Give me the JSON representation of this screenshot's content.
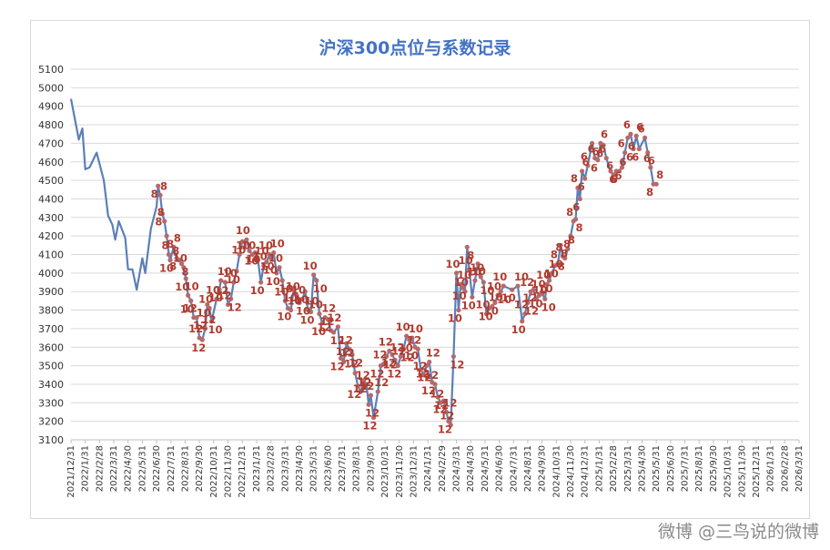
{
  "chart_data": {
    "type": "line",
    "title": "沪深300点位与系数记录",
    "ylim": [
      3100,
      5100
    ],
    "yticks": [
      3100,
      3200,
      3300,
      3400,
      3500,
      3600,
      3700,
      3800,
      3900,
      4000,
      4100,
      4200,
      4300,
      4400,
      4500,
      4600,
      4700,
      4800,
      4900,
      5000,
      5100
    ],
    "grid": true,
    "line_color": "#5b7fb8",
    "marker_color": "#b56a6a",
    "label_color": "#b03a2e",
    "x_labels": [
      "2021/12/31",
      "2022/1/31",
      "2022/2/28",
      "2022/3/31",
      "2022/4/30",
      "2022/5/31",
      "2022/6/30",
      "2022/7/31",
      "2022/8/31",
      "2022/9/30",
      "2022/10/31",
      "2022/11/30",
      "2022/12/31",
      "2023/1/31",
      "2023/2/28",
      "2023/3/31",
      "2023/4/30",
      "2023/5/31",
      "2023/6/30",
      "2023/7/31",
      "2023/8/31",
      "2023/9/30",
      "2023/10/31",
      "2023/11/30",
      "2023/12/31",
      "2024/1/31",
      "2024/2/29",
      "2024/3/31",
      "2024/4/30",
      "2024/5/31",
      "2024/6/30",
      "2024/7/31",
      "2024/8/31",
      "2024/9/30",
      "2024/10/31",
      "2024/11/30",
      "2024/12/31",
      "2025/1/31",
      "2025/2/28",
      "2025/3/31",
      "2025/4/30",
      "2025/5/31",
      "2025/6/30",
      "2025/7/31",
      "2025/8/31",
      "2025/9/30",
      "2025/10/31",
      "2025/11/30",
      "2025/12/31",
      "2026/1/31",
      "2026/2/28",
      "2026/3/31"
    ],
    "series": [
      {
        "name": "沪深300",
        "points": [
          [
            0,
            4940,
            ""
          ],
          [
            0.35,
            4800,
            ""
          ],
          [
            0.55,
            4720,
            ""
          ],
          [
            0.8,
            4780,
            ""
          ],
          [
            1.0,
            4560,
            ""
          ],
          [
            1.3,
            4570,
            ""
          ],
          [
            1.8,
            4650,
            ""
          ],
          [
            2.3,
            4500,
            ""
          ],
          [
            2.6,
            4310,
            ""
          ],
          [
            2.9,
            4260,
            ""
          ],
          [
            3.1,
            4180,
            ""
          ],
          [
            3.35,
            4280,
            ""
          ],
          [
            3.8,
            4190,
            ""
          ],
          [
            4.0,
            4020,
            ""
          ],
          [
            4.3,
            4020,
            ""
          ],
          [
            4.6,
            3910,
            ""
          ],
          [
            5.0,
            4080,
            ""
          ],
          [
            5.2,
            4000,
            ""
          ],
          [
            5.6,
            4240,
            ""
          ],
          [
            6.0,
            4360,
            ""
          ],
          [
            6.1,
            4470,
            "8"
          ],
          [
            6.25,
            4420,
            "8"
          ],
          [
            6.4,
            4320,
            "8"
          ],
          [
            6.55,
            4280,
            "8"
          ],
          [
            6.7,
            4200,
            "8"
          ],
          [
            6.85,
            4100,
            "8"
          ],
          [
            6.95,
            4070,
            "10"
          ],
          [
            7.2,
            4140,
            "8"
          ],
          [
            7.4,
            4080,
            "8"
          ],
          [
            7.6,
            4070,
            "8"
          ],
          [
            7.75,
            4050,
            "8"
          ],
          [
            7.9,
            4030,
            "10"
          ],
          [
            8.05,
            3970,
            "10"
          ],
          [
            8.2,
            3880,
            "10"
          ],
          [
            8.4,
            3850,
            "10"
          ],
          [
            8.6,
            3760,
            "12"
          ],
          [
            8.8,
            3760,
            "12"
          ],
          [
            9.0,
            3650,
            "12"
          ],
          [
            9.2,
            3640,
            "12"
          ],
          [
            9.4,
            3700,
            "12"
          ],
          [
            9.55,
            3830,
            "10"
          ],
          [
            9.7,
            3810,
            "10"
          ],
          [
            9.85,
            3740,
            "10"
          ],
          [
            10.2,
            3860,
            "10"
          ],
          [
            10.4,
            3910,
            "10"
          ],
          [
            10.5,
            3960,
            "10"
          ],
          [
            10.8,
            3950,
            "12"
          ],
          [
            11.0,
            3830,
            "12"
          ],
          [
            11.2,
            3860,
            "12"
          ],
          [
            11.4,
            3950,
            "10"
          ],
          [
            11.6,
            4010,
            "10"
          ],
          [
            11.8,
            4100,
            "10"
          ],
          [
            12.0,
            4170,
            "10"
          ],
          [
            12.3,
            4180,
            "10"
          ],
          [
            12.5,
            4120,
            "10"
          ],
          [
            12.7,
            4100,
            "10"
          ],
          [
            12.9,
            4110,
            "10"
          ],
          [
            13.1,
            4070,
            "10"
          ],
          [
            13.3,
            3950,
            "10"
          ],
          [
            13.5,
            4040,
            "10"
          ],
          [
            13.7,
            4060,
            "10"
          ],
          [
            13.9,
            4100,
            "10"
          ],
          [
            14.0,
            4080,
            "10"
          ],
          [
            14.2,
            4110,
            "10"
          ],
          [
            14.4,
            4000,
            "10"
          ],
          [
            14.6,
            4030,
            "10"
          ],
          [
            14.8,
            3960,
            "10"
          ],
          [
            15.0,
            3850,
            "10"
          ],
          [
            15.2,
            3810,
            "10"
          ],
          [
            15.4,
            3800,
            "10"
          ],
          [
            15.6,
            3910,
            "10"
          ],
          [
            15.8,
            3880,
            "10"
          ],
          [
            16.0,
            3840,
            "10"
          ],
          [
            16.2,
            3860,
            "10"
          ],
          [
            16.4,
            3900,
            "10"
          ],
          [
            16.6,
            3800,
            "10"
          ],
          [
            16.8,
            3790,
            "10"
          ],
          [
            17.0,
            3990,
            "10"
          ],
          [
            17.2,
            3960,
            "10"
          ],
          [
            17.4,
            3780,
            "10"
          ],
          [
            17.6,
            3730,
            "10"
          ],
          [
            17.8,
            3760,
            "12"
          ],
          [
            18.0,
            3750,
            "12"
          ],
          [
            18.2,
            3690,
            "12"
          ],
          [
            18.4,
            3680,
            "12"
          ],
          [
            18.7,
            3710,
            "12"
          ],
          [
            18.9,
            3540,
            "12"
          ],
          [
            19.1,
            3520,
            "12"
          ],
          [
            19.3,
            3620,
            "12"
          ],
          [
            19.5,
            3590,
            "12"
          ],
          [
            19.7,
            3560,
            "12"
          ],
          [
            19.9,
            3460,
            "12"
          ],
          [
            20.1,
            3390,
            "12"
          ],
          [
            20.3,
            3360,
            "12"
          ],
          [
            20.5,
            3420,
            "12"
          ],
          [
            20.7,
            3400,
            "12"
          ],
          [
            20.85,
            3290,
            "12"
          ],
          [
            21.0,
            3340,
            "12"
          ],
          [
            21.2,
            3220,
            "12"
          ],
          [
            21.5,
            3360,
            "12"
          ],
          [
            21.7,
            3500,
            "12"
          ],
          [
            21.9,
            3510,
            "12"
          ],
          [
            22.1,
            3550,
            "12"
          ],
          [
            22.3,
            3580,
            "12"
          ],
          [
            22.5,
            3560,
            "12"
          ],
          [
            22.7,
            3530,
            "12"
          ],
          [
            22.9,
            3500,
            "12"
          ],
          [
            23.1,
            3550,
            "12"
          ],
          [
            23.3,
            3590,
            "12"
          ],
          [
            23.5,
            3660,
            "10"
          ],
          [
            23.7,
            3640,
            "10"
          ],
          [
            23.9,
            3650,
            "10"
          ],
          [
            24.1,
            3600,
            "10"
          ],
          [
            24.3,
            3590,
            "12"
          ],
          [
            24.5,
            3480,
            "12"
          ],
          [
            24.7,
            3450,
            "12"
          ],
          [
            24.9,
            3500,
            "12"
          ],
          [
            25.1,
            3520,
            "12"
          ],
          [
            25.3,
            3410,
            "12"
          ],
          [
            25.5,
            3400,
            "12"
          ],
          [
            25.7,
            3330,
            "12"
          ],
          [
            25.9,
            3300,
            "12"
          ],
          [
            26.1,
            3310,
            "12"
          ],
          [
            26.3,
            3250,
            "12"
          ],
          [
            26.45,
            3200,
            "12"
          ],
          [
            26.6,
            3180,
            "12"
          ],
          [
            26.8,
            3550,
            "12"
          ],
          [
            27.0,
            4000,
            "10"
          ],
          [
            27.15,
            3800,
            "10"
          ],
          [
            27.3,
            3940,
            "10"
          ],
          [
            27.45,
            3920,
            "10"
          ],
          [
            27.6,
            3900,
            "10"
          ],
          [
            27.75,
            4140,
            "8"
          ],
          [
            27.9,
            4020,
            "10"
          ],
          [
            28.1,
            3870,
            "10"
          ],
          [
            28.3,
            3960,
            "10"
          ],
          [
            28.5,
            4050,
            "10"
          ],
          [
            28.7,
            3980,
            "10"
          ],
          [
            28.9,
            3950,
            "10"
          ],
          [
            29.1,
            3780,
            "10"
          ],
          [
            29.3,
            3810,
            "10"
          ],
          [
            29.5,
            3820,
            "10"
          ],
          [
            29.7,
            3840,
            "10"
          ],
          [
            29.9,
            3880,
            "10"
          ],
          [
            30.1,
            3900,
            "10"
          ],
          [
            30.3,
            3930,
            "10"
          ],
          [
            30.9,
            3910,
            "10"
          ],
          [
            31.3,
            3930,
            "10"
          ],
          [
            31.6,
            3740,
            "10"
          ],
          [
            31.8,
            3780,
            "12"
          ],
          [
            32.0,
            3840,
            "12"
          ],
          [
            32.2,
            3900,
            "12"
          ],
          [
            32.4,
            3910,
            "12"
          ],
          [
            32.6,
            3860,
            "10"
          ],
          [
            32.8,
            3880,
            "10"
          ],
          [
            33.0,
            3890,
            "10"
          ],
          [
            33.2,
            3860,
            "10"
          ],
          [
            33.35,
            3940,
            "10"
          ],
          [
            33.5,
            3960,
            "10"
          ],
          [
            33.7,
            4000,
            "10"
          ],
          [
            33.9,
            4040,
            "10"
          ],
          [
            34.1,
            4050,
            "8"
          ],
          [
            34.3,
            4150,
            "8"
          ],
          [
            34.45,
            4090,
            "8"
          ],
          [
            34.6,
            4080,
            "8"
          ],
          [
            34.8,
            4130,
            "8"
          ],
          [
            35.0,
            4200,
            "8"
          ],
          [
            35.2,
            4280,
            "8"
          ],
          [
            35.35,
            4290,
            "8"
          ],
          [
            35.5,
            4460,
            "8"
          ],
          [
            35.65,
            4400,
            "6"
          ],
          [
            35.8,
            4550,
            "6"
          ],
          [
            36.0,
            4510,
            "6"
          ],
          [
            36.2,
            4580,
            "6"
          ],
          [
            36.5,
            4700,
            "6"
          ],
          [
            36.7,
            4620,
            "6"
          ],
          [
            36.9,
            4610,
            "6"
          ],
          [
            37.1,
            4700,
            "6"
          ],
          [
            37.3,
            4690,
            "6"
          ],
          [
            37.5,
            4620,
            "6"
          ],
          [
            37.8,
            4550,
            "6"
          ],
          [
            38.0,
            4530,
            "6"
          ],
          [
            38.2,
            4550,
            "6"
          ],
          [
            38.4,
            4550,
            "6"
          ],
          [
            38.6,
            4570,
            "6"
          ],
          [
            38.8,
            4650,
            "6"
          ],
          [
            39.0,
            4730,
            "6"
          ],
          [
            39.2,
            4750,
            "6"
          ],
          [
            39.4,
            4670,
            "6"
          ],
          [
            39.6,
            4740,
            "6"
          ],
          [
            39.8,
            4670,
            "6"
          ],
          [
            40.2,
            4730,
            "6"
          ],
          [
            40.4,
            4650,
            "6"
          ],
          [
            40.6,
            4570,
            "6"
          ],
          [
            40.8,
            4480,
            "8"
          ],
          [
            41.0,
            4480,
            "8"
          ]
        ]
      }
    ]
  },
  "watermark": "微博 @三鸟说的微博"
}
